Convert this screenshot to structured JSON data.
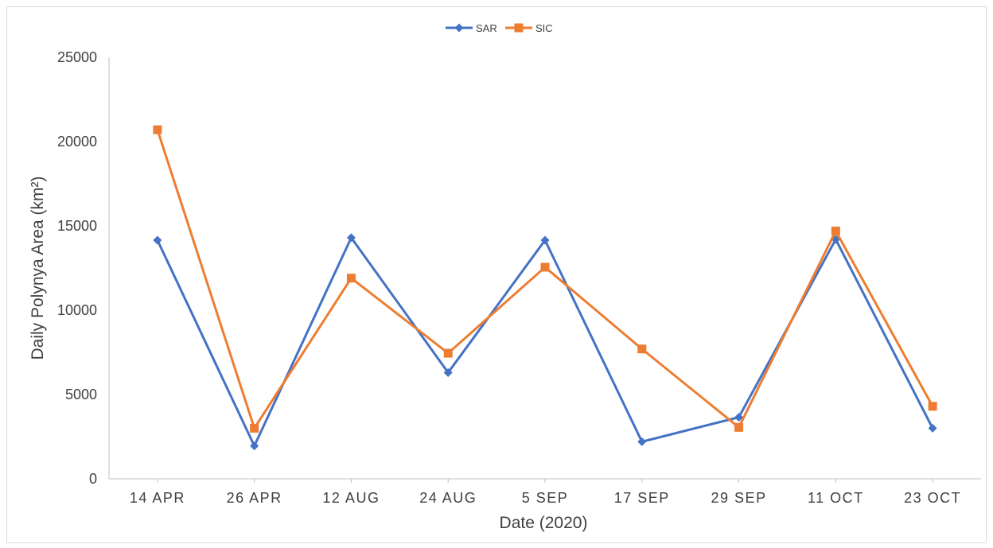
{
  "chart_data": {
    "type": "line",
    "categories": [
      "14 APR",
      "26 APR",
      "12 AUG",
      "24 AUG",
      "5 SEP",
      "17 SEP",
      "29 SEP",
      "11 OCT",
      "23 OCT"
    ],
    "series": [
      {
        "name": "SAR",
        "color": "#4472c4",
        "marker": "diamond",
        "values": [
          14150,
          1950,
          14300,
          6300,
          14150,
          2200,
          3650,
          14200,
          3000
        ]
      },
      {
        "name": "SIC",
        "color": "#ed7d31",
        "marker": "square",
        "values": [
          20700,
          3000,
          11900,
          7450,
          12550,
          7700,
          3050,
          14700,
          4300
        ]
      }
    ],
    "title": "",
    "xlabel": "Date (2020)",
    "ylabel": "Daily Polynya Area (km²)",
    "ylim": [
      0,
      25000
    ],
    "yticks": [
      "0",
      "5000",
      "10000",
      "15000",
      "20000",
      "25000"
    ],
    "grid": false,
    "legend": "top-center"
  }
}
